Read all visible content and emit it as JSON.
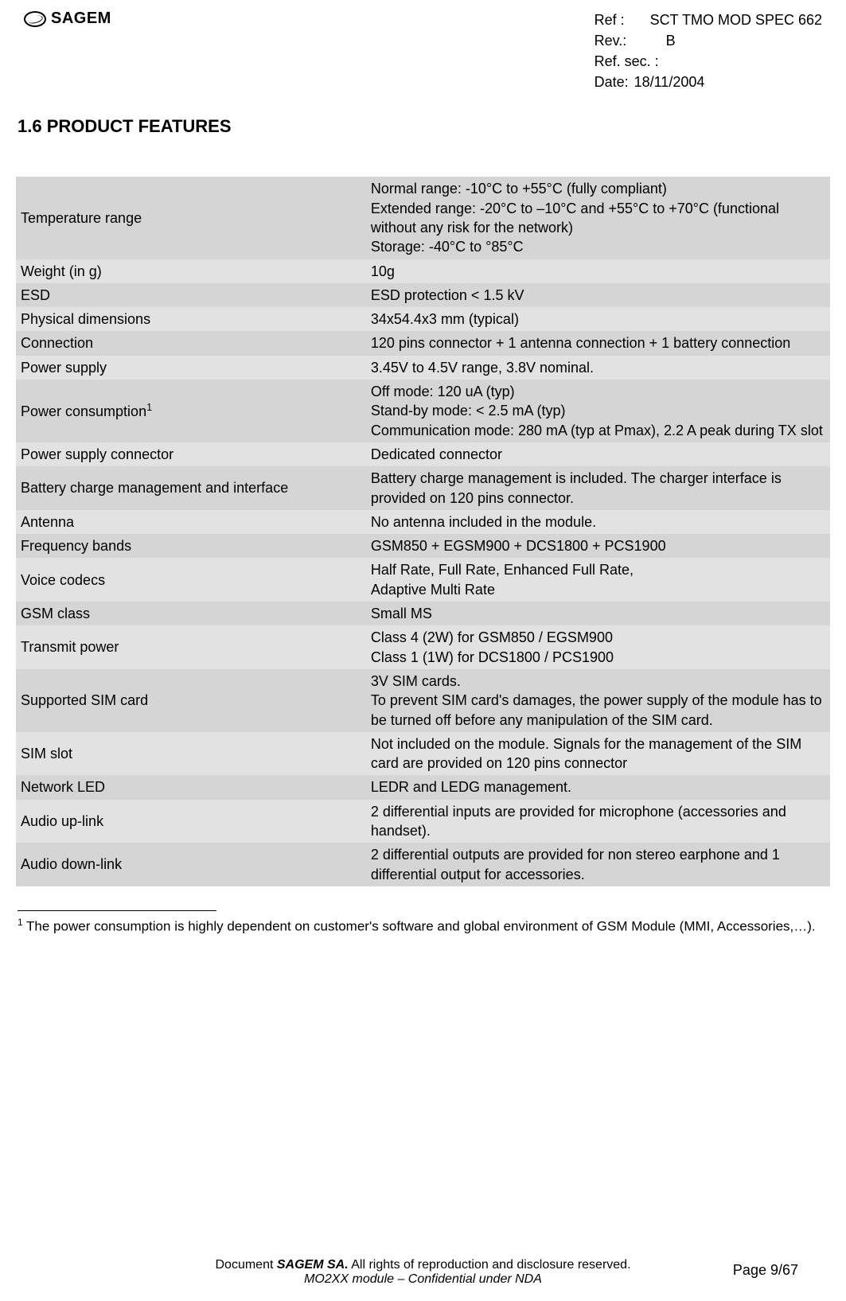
{
  "header": {
    "logo_text": "SAGEM",
    "refs": {
      "ref_label": "Ref :",
      "ref_value": "SCT TMO MOD SPEC 662",
      "rev_label": "Rev.:",
      "rev_value": "B",
      "refsec_label": "Ref. sec. :",
      "refsec_value": "",
      "date_label": "Date:",
      "date_value": "18/11/2004"
    }
  },
  "section": {
    "heading": "1.6  PRODUCT FEATURES"
  },
  "table": {
    "rows": [
      {
        "label": "Temperature range",
        "value": "Normal range: -10°C to +55°C (fully compliant)\nExtended range: -20°C to –10°C and +55°C to +70°C (functional without any risk for the network)\nStorage: -40°C to °85°C"
      },
      {
        "label": "Weight (in g)",
        "value": "10g"
      },
      {
        "label": "ESD",
        "value": "ESD protection < 1.5 kV"
      },
      {
        "label": "Physical dimensions",
        "value": "34x54.4x3 mm (typical)"
      },
      {
        "label": "Connection",
        "value": "120 pins connector + 1 antenna connection + 1 battery connection"
      },
      {
        "label": "Power supply",
        "value": "3.45V to 4.5V range, 3.8V nominal."
      },
      {
        "label": "Power consumption",
        "sup": "1",
        "value": "Off mode: 120 uA (typ)\nStand-by mode: < 2.5 mA (typ)\nCommunication mode: 280 mA (typ at Pmax), 2.2 A peak during TX slot"
      },
      {
        "label": "Power supply connector",
        "value": "Dedicated connector"
      },
      {
        "label": "Battery charge management and interface",
        "value": "Battery charge management is included. The charger interface is provided on 120 pins connector."
      },
      {
        "label": "Antenna",
        "value": "No antenna included in the module."
      },
      {
        "label": "Frequency bands",
        "value": "GSM850 + EGSM900 +  DCS1800 + PCS1900"
      },
      {
        "label": "Voice codecs",
        "value": "Half Rate, Full Rate, Enhanced Full Rate,\nAdaptive Multi Rate"
      },
      {
        "label": "GSM class",
        "value": "Small MS"
      },
      {
        "label": "Transmit power",
        "value": "Class 4 (2W) for GSM850 / EGSM900\nClass 1 (1W) for DCS1800 / PCS1900"
      },
      {
        "label": "Supported SIM card",
        "value": "3V SIM cards.\nTo prevent SIM card's damages, the power supply of the module has to be turned off before any manipulation of the SIM card."
      },
      {
        "label": "SIM slot",
        "value": "Not included on the module. Signals for the management of the SIM card are provided on 120 pins connector"
      },
      {
        "label": "Network LED",
        "value": "LEDR and LEDG management."
      },
      {
        "label": "Audio up-link",
        "value": "2 differential inputs are provided for microphone (accessories and handset)."
      },
      {
        "label": "Audio down-link",
        "value": "2 differential outputs are provided for non stereo earphone and 1 differential output for accessories."
      }
    ]
  },
  "footnote": {
    "marker": "1",
    "text": " The power consumption is highly dependent on customer's software and global environment of GSM Module (MMI, Accessories,…)."
  },
  "footer": {
    "line1_prefix": "Document ",
    "brand": "SAGEM SA.",
    "line1_suffix": "  All rights of reproduction and disclosure reserved.",
    "line2": "MO2XX module – Confidential under NDA",
    "page": "Page 9/67"
  }
}
